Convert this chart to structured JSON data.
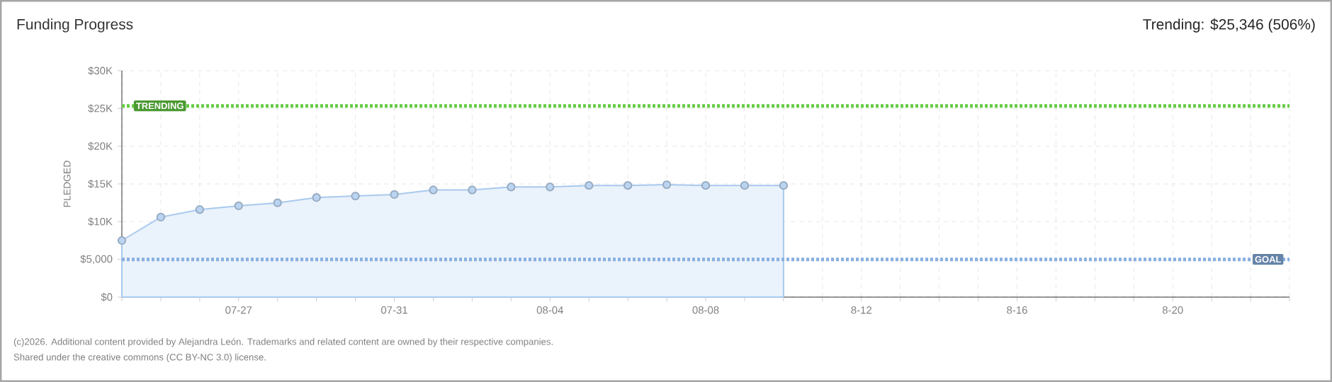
{
  "chart_data": {
    "type": "area",
    "title": "Funding Progress",
    "subtitle": "Trending: $25,346 (506%)",
    "ylabel": "PLEDGED",
    "categories": [
      null,
      null,
      null,
      "07-27",
      null,
      null,
      null,
      "07-31",
      null,
      null,
      null,
      "08-04",
      null,
      null,
      null,
      "08-08",
      null,
      null,
      null,
      "8-12",
      null,
      null,
      null,
      "8-16",
      null,
      null,
      null,
      "8-20",
      null,
      null,
      null
    ],
    "values": [
      7500,
      10600,
      11600,
      12100,
      12500,
      13200,
      13400,
      13600,
      14200,
      14200,
      14600,
      14600,
      14800,
      14800,
      14900,
      14800,
      14800,
      14800,
      null,
      null,
      null,
      null,
      null,
      null,
      null,
      null,
      null,
      null,
      null,
      null,
      null
    ],
    "color": "#a9c9ee",
    "marker": "circle",
    "line_style": "solid",
    "grid": true,
    "ylim": [
      0,
      30000
    ],
    "yticks": [
      {
        "value": 0,
        "label": "$0"
      },
      {
        "value": 5000,
        "label": "$5,000"
      },
      {
        "value": 10000,
        "label": "$10K"
      },
      {
        "value": 15000,
        "label": "$15K"
      },
      {
        "value": 20000,
        "label": "$20K"
      },
      {
        "value": 25000,
        "label": "$25K"
      },
      {
        "value": 30000,
        "label": "$30K"
      }
    ],
    "ref_lines": [
      {
        "axis": "y",
        "value": 25346,
        "label": "TRENDING",
        "color": "#66cc44",
        "line_style": "dotted"
      },
      {
        "axis": "y",
        "value": 5000,
        "label": "GOAL",
        "color": "#88b0e0",
        "line_style": "dotted"
      }
    ],
    "annotations": [
      "(c)2026. Additional content provided by Alejandra León. Trademarks and related content are owned by their respective companies.",
      "Shared under the creative commons (CC BY-NC 3.0) license."
    ]
  }
}
